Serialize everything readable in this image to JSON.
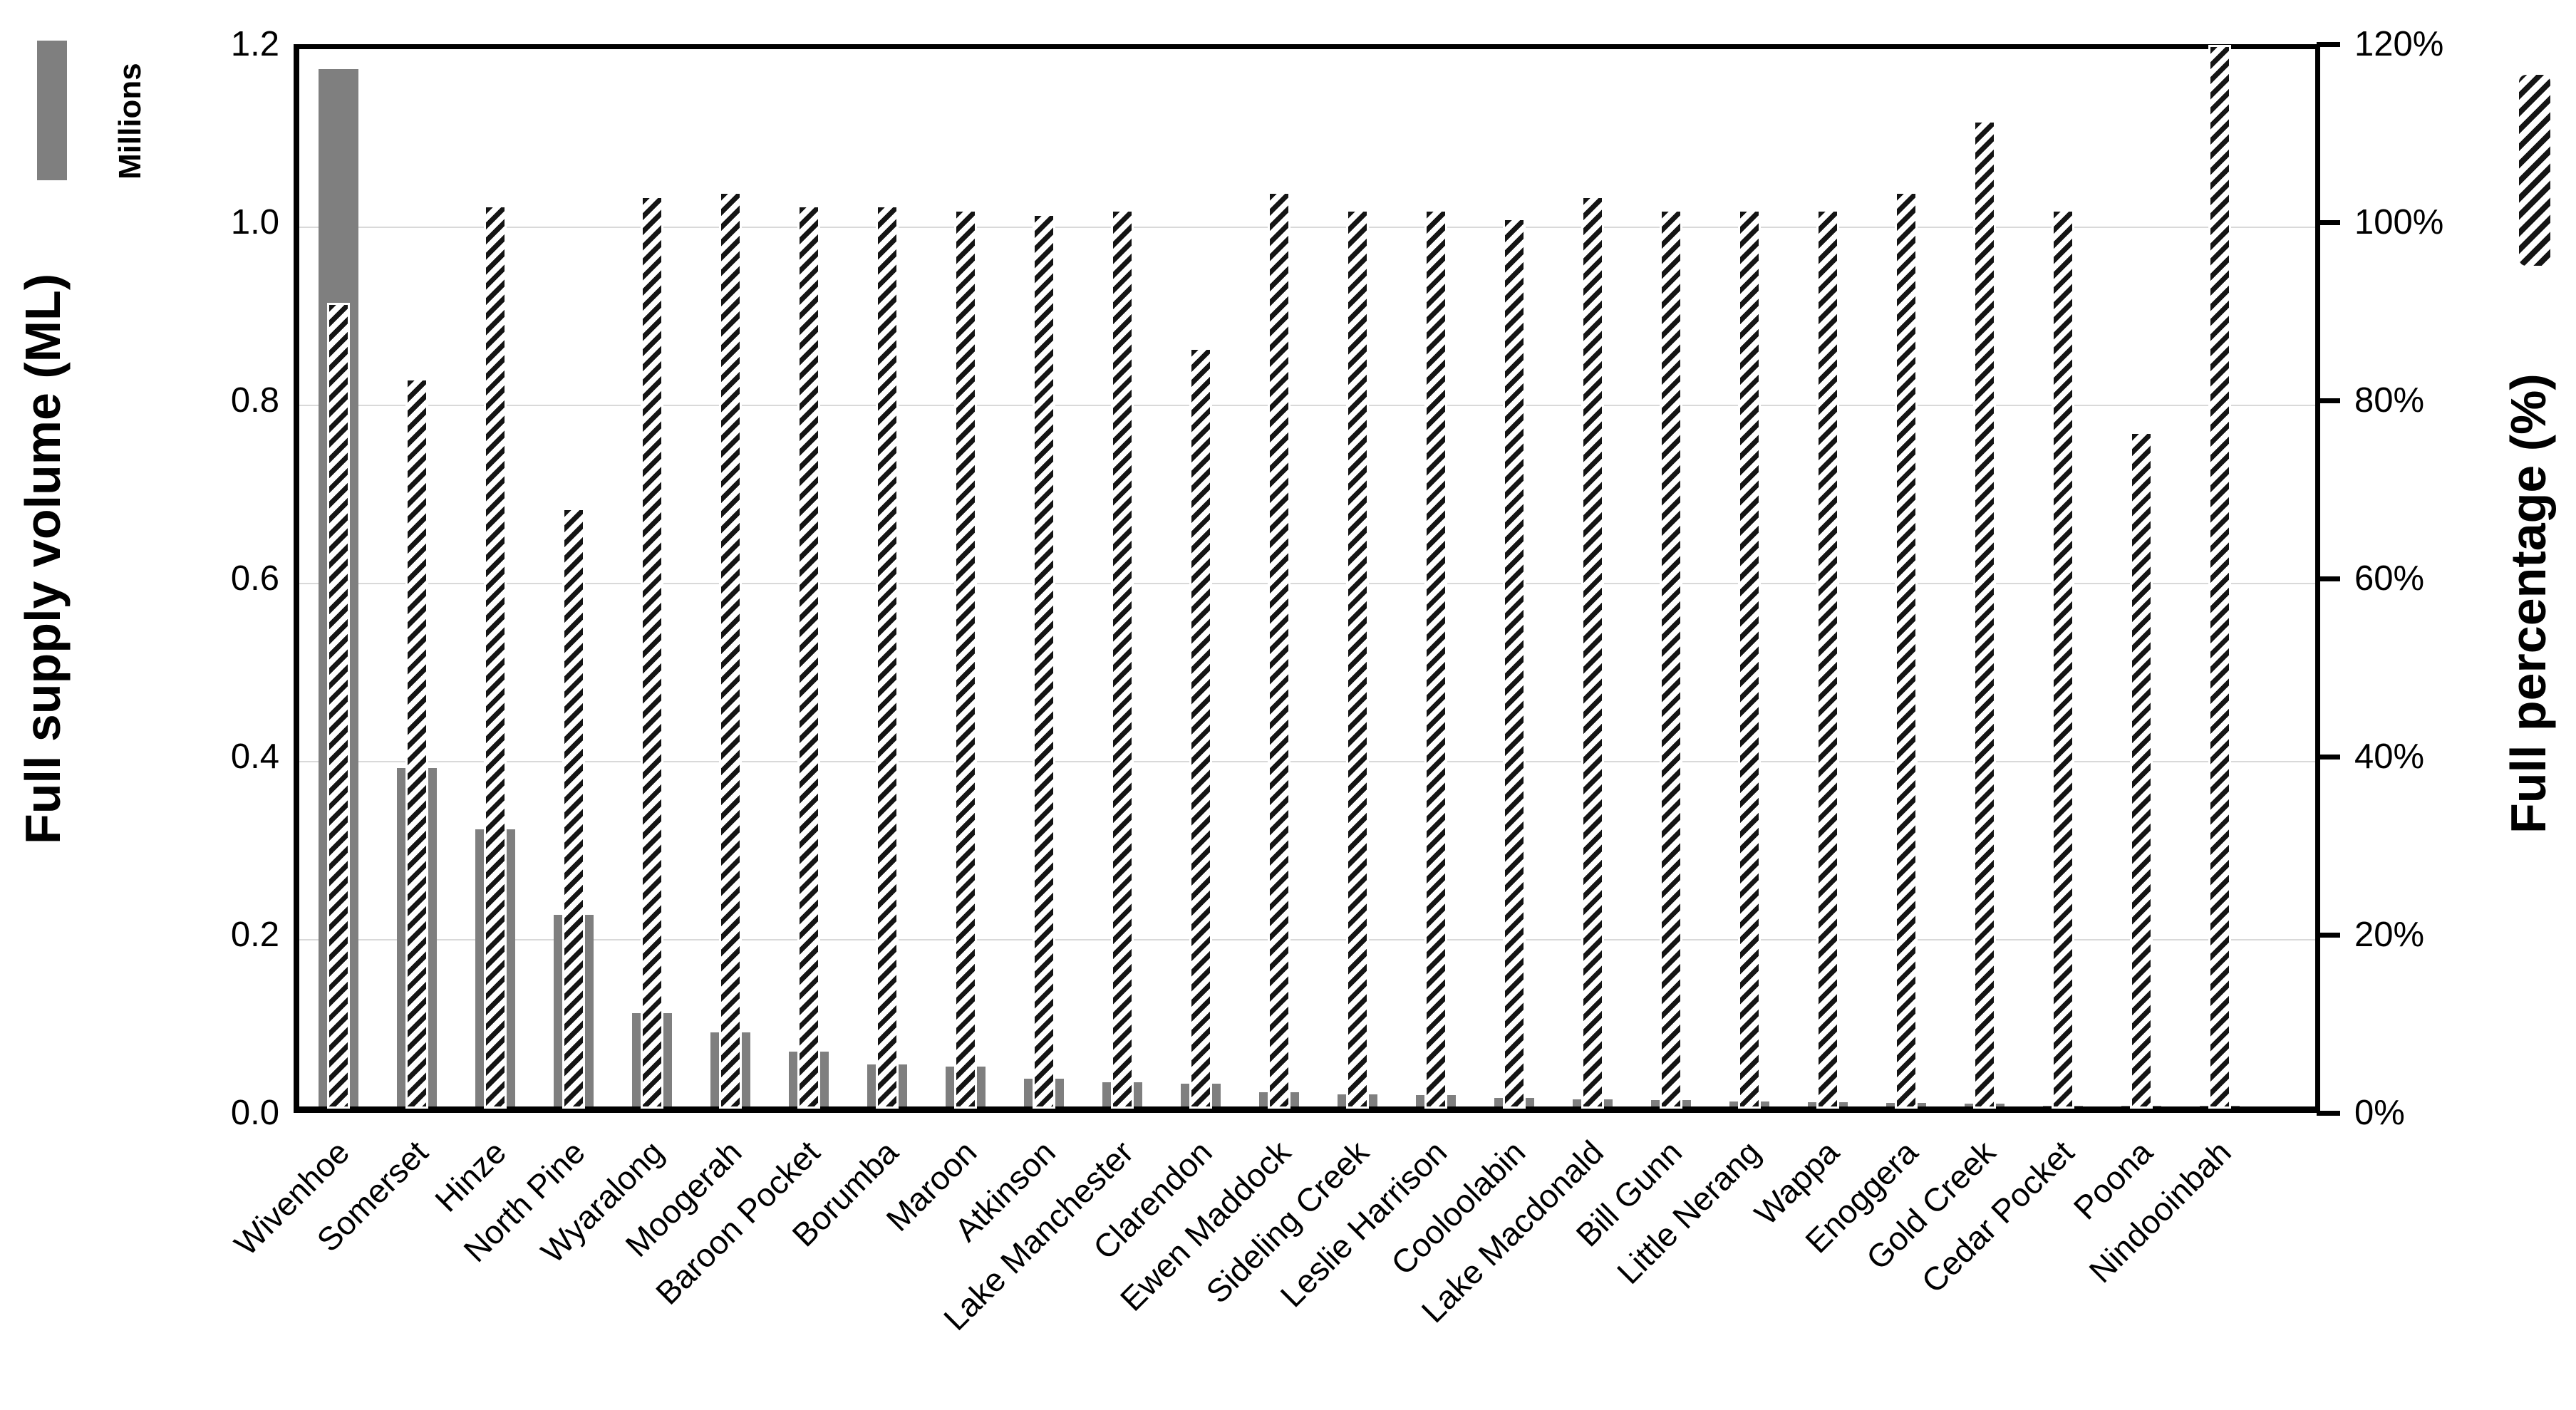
{
  "chart_data": {
    "type": "bar",
    "title": "",
    "categories": [
      "Wivenhoe",
      "Somerset",
      "Hinze",
      "North Pine",
      "Wyaralong",
      "Moogerah",
      "Baroon Pocket",
      "Borumba",
      "Maroon",
      "Atkinson",
      "Lake Manchester",
      "Clarendon",
      "Ewen Maddock",
      "Sideling Creek",
      "Leslie Harrison",
      "Cooloolabin",
      "Lake Macdonald",
      "Bill Gunn",
      "Little Nerang",
      "Wappa",
      "Enoggera",
      "Gold Creek",
      "Cedar Pocket",
      "Poona",
      "Nindooinbah"
    ],
    "series": [
      {
        "name": "Full supply volume (ML)",
        "axis": "left",
        "style": "solid-gray-bar",
        "unit": "millions ML",
        "values": [
          1.165,
          0.38,
          0.311,
          0.215,
          0.105,
          0.083,
          0.062,
          0.047,
          0.045,
          0.031,
          0.027,
          0.026,
          0.016,
          0.014,
          0.013,
          0.01,
          0.008,
          0.007,
          0.006,
          0.005,
          0.004,
          0.003,
          0.001,
          0.001,
          0.001
        ]
      },
      {
        "name": "Full percentage (%)",
        "axis": "right",
        "style": "diagonal-hatch-bar",
        "unit": "%",
        "values": [
          90,
          81.5,
          101,
          67,
          102,
          102.5,
          101,
          101,
          100.5,
          100,
          100.5,
          85,
          102.5,
          100.5,
          100.5,
          99.5,
          102,
          100.5,
          100.5,
          100.5,
          102.5,
          110.5,
          100.5,
          75.5,
          119
        ]
      }
    ],
    "left_axis": {
      "title": "Full supply volume (ML)",
      "units": "Millions",
      "min": 0,
      "max": 1.2,
      "ticks": [
        "1.2",
        "1.0",
        "0.8",
        "0.6",
        "0.4",
        "0.2",
        "0.0"
      ],
      "tick_values": [
        1.2,
        1.0,
        0.8,
        0.6,
        0.4,
        0.2,
        0.0
      ]
    },
    "right_axis": {
      "title": "Full percentage (%)",
      "min": 0,
      "max": 120,
      "ticks": [
        "120%",
        "100%",
        "80%",
        "60%",
        "40%",
        "20%",
        "0%"
      ],
      "tick_values": [
        120,
        100,
        80,
        60,
        40,
        20,
        0
      ]
    },
    "grid": "horizontal",
    "legend_position": "swatches-beside-axis-titles",
    "colors": {
      "volume_bar": "#7f7f7f",
      "hatch_dark": "#141414",
      "hatch_light": "#ffffff",
      "gridline": "#d9d9d9",
      "axis": "#000000"
    }
  }
}
